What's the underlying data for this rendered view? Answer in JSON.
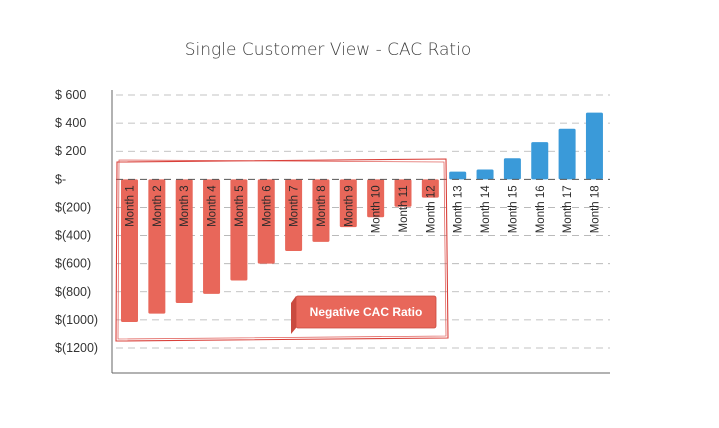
{
  "chart_data": {
    "type": "bar",
    "title": "Single Customer View - CAC Ratio",
    "xlabel": "",
    "ylabel": "",
    "ylim": [
      -1200,
      600
    ],
    "yticks": [
      600,
      400,
      200,
      0,
      -200,
      -400,
      -600,
      -800,
      -1000,
      -1200
    ],
    "ytick_labels": [
      "$ 600",
      "$ 400",
      "$ 200",
      "$-",
      "$(200)",
      "$(400)",
      "$(600)",
      "$(800)",
      "$(1000)",
      "$(1200)"
    ],
    "grid": true,
    "categories": [
      "Month 1",
      "Month 2",
      "Month 3",
      "Month 4",
      "Month 5",
      "Month 6",
      "Month 7",
      "Month 8",
      "Month 9",
      "Month 10",
      "Month 11",
      "Month 12",
      "Month 13",
      "Month 14",
      "Month 15",
      "Month 16",
      "Month 17",
      "Month 18"
    ],
    "values": [
      -1015,
      -955,
      -880,
      -815,
      -720,
      -600,
      -510,
      -445,
      -340,
      -270,
      -195,
      -130,
      55,
      70,
      150,
      265,
      360,
      475
    ],
    "colors": {
      "negative": "#e8675a",
      "positive": "#3a9ad9",
      "outline": "#d9403a",
      "grid": "#b0b0b0",
      "axis": "#444444"
    },
    "annotation": {
      "text": "Negative CAC Ratio",
      "range": [
        "Month 1",
        "Month 12"
      ]
    }
  }
}
